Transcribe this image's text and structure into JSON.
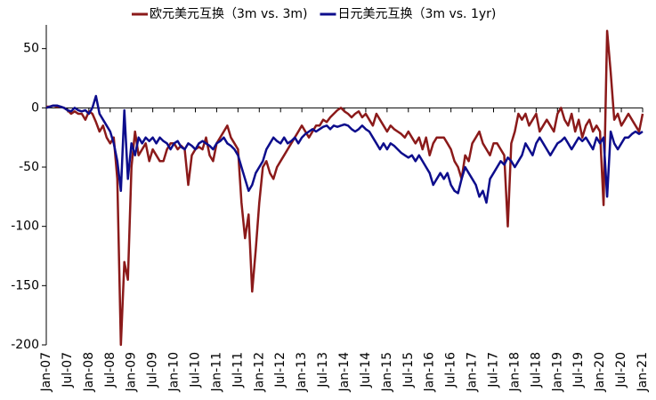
{
  "chart_data": {
    "type": "line",
    "x": [
      "2007-01",
      "2007-02",
      "2007-03",
      "2007-04",
      "2007-05",
      "2007-06",
      "2007-07",
      "2007-08",
      "2007-09",
      "2007-10",
      "2007-11",
      "2007-12",
      "2008-01",
      "2008-02",
      "2008-03",
      "2008-04",
      "2008-05",
      "2008-06",
      "2008-07",
      "2008-08",
      "2008-09",
      "2008-10",
      "2008-11",
      "2008-12",
      "2009-01",
      "2009-02",
      "2009-03",
      "2009-04",
      "2009-05",
      "2009-06",
      "2009-07",
      "2009-08",
      "2009-09",
      "2009-10",
      "2009-11",
      "2009-12",
      "2010-01",
      "2010-02",
      "2010-03",
      "2010-04",
      "2010-05",
      "2010-06",
      "2010-07",
      "2010-08",
      "2010-09",
      "2010-10",
      "2010-11",
      "2010-12",
      "2011-01",
      "2011-02",
      "2011-03",
      "2011-04",
      "2011-05",
      "2011-06",
      "2011-07",
      "2011-08",
      "2011-09",
      "2011-10",
      "2011-11",
      "2011-12",
      "2012-01",
      "2012-02",
      "2012-03",
      "2012-04",
      "2012-05",
      "2012-06",
      "2012-07",
      "2012-08",
      "2012-09",
      "2012-10",
      "2012-11",
      "2012-12",
      "2013-01",
      "2013-02",
      "2013-03",
      "2013-04",
      "2013-05",
      "2013-06",
      "2013-07",
      "2013-08",
      "2013-09",
      "2013-10",
      "2013-11",
      "2013-12",
      "2014-01",
      "2014-02",
      "2014-03",
      "2014-04",
      "2014-05",
      "2014-06",
      "2014-07",
      "2014-08",
      "2014-09",
      "2014-10",
      "2014-11",
      "2014-12",
      "2015-01",
      "2015-02",
      "2015-03",
      "2015-04",
      "2015-05",
      "2015-06",
      "2015-07",
      "2015-08",
      "2015-09",
      "2015-10",
      "2015-11",
      "2015-12",
      "2016-01",
      "2016-02",
      "2016-03",
      "2016-04",
      "2016-05",
      "2016-06",
      "2016-07",
      "2016-08",
      "2016-09",
      "2016-10",
      "2016-11",
      "2016-12",
      "2017-01",
      "2017-02",
      "2017-03",
      "2017-04",
      "2017-05",
      "2017-06",
      "2017-07",
      "2017-08",
      "2017-09",
      "2017-10",
      "2017-11",
      "2017-12",
      "2018-01",
      "2018-02",
      "2018-03",
      "2018-04",
      "2018-05",
      "2018-06",
      "2018-07",
      "2018-08",
      "2018-09",
      "2018-10",
      "2018-11",
      "2018-12",
      "2019-01",
      "2019-02",
      "2019-03",
      "2019-04",
      "2019-05",
      "2019-06",
      "2019-07",
      "2019-08",
      "2019-09",
      "2019-10",
      "2019-11",
      "2019-12",
      "2020-01",
      "2020-02",
      "2020-03",
      "2020-04",
      "2020-05",
      "2020-06",
      "2020-07",
      "2020-08",
      "2020-09",
      "2020-10",
      "2020-11",
      "2020-12",
      "2021-01"
    ],
    "series": [
      {
        "name": "欧元美元互换（3m vs. 3m)",
        "color": "#8b1a1a",
        "values": [
          1,
          1,
          2,
          1,
          1,
          0,
          -2,
          -5,
          -3,
          -5,
          -5,
          -10,
          -3,
          -5,
          -12,
          -20,
          -15,
          -25,
          -30,
          -25,
          -60,
          -200,
          -130,
          -145,
          -50,
          -20,
          -40,
          -35,
          -30,
          -45,
          -35,
          -40,
          -45,
          -45,
          -35,
          -30,
          -30,
          -35,
          -32,
          -35,
          -65,
          -40,
          -35,
          -33,
          -35,
          -25,
          -40,
          -45,
          -30,
          -25,
          -20,
          -15,
          -25,
          -30,
          -35,
          -80,
          -110,
          -90,
          -155,
          -120,
          -80,
          -50,
          -45,
          -55,
          -60,
          -50,
          -45,
          -40,
          -35,
          -30,
          -25,
          -20,
          -15,
          -20,
          -25,
          -20,
          -15,
          -15,
          -10,
          -12,
          -8,
          -5,
          -2,
          0,
          -3,
          -5,
          -8,
          -5,
          -3,
          -8,
          -5,
          -10,
          -15,
          -5,
          -10,
          -15,
          -20,
          -15,
          -18,
          -20,
          -22,
          -25,
          -20,
          -25,
          -30,
          -25,
          -35,
          -25,
          -40,
          -30,
          -25,
          -25,
          -25,
          -30,
          -35,
          -45,
          -50,
          -60,
          -40,
          -45,
          -30,
          -25,
          -20,
          -30,
          -35,
          -40,
          -30,
          -30,
          -35,
          -40,
          -100,
          -30,
          -20,
          -5,
          -10,
          -5,
          -15,
          -10,
          -5,
          -20,
          -15,
          -10,
          -15,
          -20,
          -5,
          0,
          -10,
          -15,
          -5,
          -20,
          -10,
          -25,
          -15,
          -10,
          -20,
          -15,
          -20,
          -82,
          65,
          30,
          -10,
          -5,
          -15,
          -10,
          -5,
          -10,
          -15,
          -20,
          -5
        ]
      },
      {
        "name": "日元美元互换（3m vs. 1yr)",
        "color": "#0d0d8c",
        "values": [
          0,
          1,
          2,
          2,
          1,
          0,
          -2,
          -3,
          0,
          -2,
          -3,
          -2,
          -5,
          0,
          10,
          -5,
          -10,
          -15,
          -20,
          -30,
          -45,
          -70,
          -2,
          -60,
          -30,
          -40,
          -25,
          -30,
          -25,
          -28,
          -25,
          -30,
          -25,
          -28,
          -30,
          -35,
          -30,
          -28,
          -33,
          -35,
          -30,
          -32,
          -35,
          -30,
          -28,
          -30,
          -32,
          -35,
          -30,
          -28,
          -25,
          -30,
          -32,
          -35,
          -40,
          -50,
          -60,
          -70,
          -65,
          -55,
          -50,
          -45,
          -35,
          -30,
          -25,
          -28,
          -30,
          -25,
          -30,
          -28,
          -25,
          -30,
          -25,
          -22,
          -20,
          -18,
          -20,
          -18,
          -16,
          -15,
          -18,
          -15,
          -16,
          -15,
          -14,
          -15,
          -18,
          -20,
          -18,
          -15,
          -18,
          -20,
          -25,
          -30,
          -35,
          -30,
          -35,
          -30,
          -32,
          -35,
          -38,
          -40,
          -42,
          -40,
          -45,
          -40,
          -45,
          -50,
          -55,
          -65,
          -60,
          -55,
          -60,
          -55,
          -65,
          -70,
          -72,
          -60,
          -50,
          -55,
          -60,
          -65,
          -75,
          -70,
          -80,
          -60,
          -55,
          -50,
          -45,
          -48,
          -42,
          -45,
          -50,
          -45,
          -40,
          -30,
          -35,
          -40,
          -30,
          -25,
          -30,
          -35,
          -40,
          -35,
          -30,
          -28,
          -25,
          -30,
          -35,
          -30,
          -25,
          -28,
          -25,
          -30,
          -35,
          -25,
          -30,
          -25,
          -75,
          -20,
          -30,
          -35,
          -30,
          -25,
          -25,
          -22,
          -20,
          -22,
          -20
        ]
      }
    ],
    "xlim": [
      "2007-01",
      "2021-01"
    ],
    "xticks": [
      {
        "value": "2007-01",
        "label": "Jan-07"
      },
      {
        "value": "2007-07",
        "label": "Jul-07"
      },
      {
        "value": "2008-01",
        "label": "Jan-08"
      },
      {
        "value": "2008-07",
        "label": "Jul-08"
      },
      {
        "value": "2009-01",
        "label": "Jan-09"
      },
      {
        "value": "2009-07",
        "label": "Jul-09"
      },
      {
        "value": "2010-01",
        "label": "Jan-10"
      },
      {
        "value": "2010-07",
        "label": "Jul-10"
      },
      {
        "value": "2011-01",
        "label": "Jan-11"
      },
      {
        "value": "2011-07",
        "label": "Jul-11"
      },
      {
        "value": "2012-01",
        "label": "Jan-12"
      },
      {
        "value": "2012-07",
        "label": "Jul-12"
      },
      {
        "value": "2013-01",
        "label": "Jan-13"
      },
      {
        "value": "2013-07",
        "label": "Jul-13"
      },
      {
        "value": "2014-01",
        "label": "Jan-14"
      },
      {
        "value": "2014-07",
        "label": "Jul-14"
      },
      {
        "value": "2015-01",
        "label": "Jan-15"
      },
      {
        "value": "2015-07",
        "label": "Jul-15"
      },
      {
        "value": "2016-01",
        "label": "Jan-16"
      },
      {
        "value": "2016-07",
        "label": "Jul-16"
      },
      {
        "value": "2017-01",
        "label": "Jan-17"
      },
      {
        "value": "2017-07",
        "label": "Jul-17"
      },
      {
        "value": "2018-01",
        "label": "Jan-18"
      },
      {
        "value": "2018-07",
        "label": "Jul-18"
      },
      {
        "value": "2019-01",
        "label": "Jan-19"
      },
      {
        "value": "2019-07",
        "label": "Jul-19"
      },
      {
        "value": "2020-01",
        "label": "Jan-20"
      },
      {
        "value": "2020-07",
        "label": "Jul-20"
      },
      {
        "value": "2021-01",
        "label": "Jan-21"
      }
    ],
    "ylim": [
      -200,
      70
    ],
    "yticks": [
      -200,
      -150,
      -100,
      -50,
      0,
      50
    ],
    "legend": "top"
  }
}
